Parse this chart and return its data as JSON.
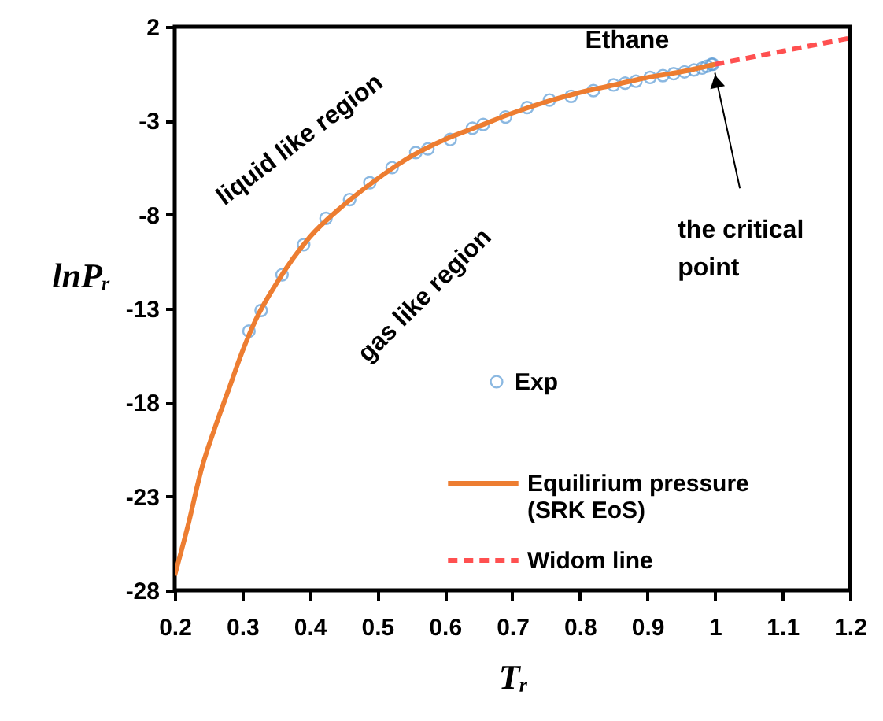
{
  "chart_data": {
    "type": "scatter",
    "xlabel": "Tᵣ",
    "ylabel": "lnPᵣ",
    "xlim": [
      0.2,
      1.2
    ],
    "xticks": [
      0.2,
      0.3,
      0.4,
      0.5,
      0.6,
      0.7,
      0.8,
      0.9,
      1,
      1.1,
      1.2
    ],
    "ylim": [
      -28,
      2
    ],
    "yticks": [
      2,
      -3,
      -8,
      -13,
      -18,
      -23,
      -28
    ],
    "grid": false,
    "legend": "bottom right",
    "annotations": [
      "Ethane",
      "liquid like region",
      "gas like region",
      {
        "text": "the critical point",
        "x": 1,
        "y": 0
      }
    ],
    "series": [
      {
        "name": "Exp",
        "marker": "circle",
        "color": "#5b9bd5",
        "x": [
          0.31,
          0.328,
          0.359,
          0.391,
          0.424,
          0.459,
          0.489,
          0.522,
          0.557,
          0.575,
          0.608,
          0.641,
          0.657,
          0.69,
          0.722,
          0.755,
          0.787,
          0.82,
          0.85,
          0.867,
          0.883,
          0.904,
          0.923,
          0.939,
          0.955,
          0.969,
          0.981,
          0.988,
          0.995,
          0.997
        ],
        "values": [
          -14.2,
          -13.1,
          -11.2,
          -9.6,
          -8.2,
          -7.2,
          -6.3,
          -5.5,
          -4.7,
          -4.5,
          -4.0,
          -3.4,
          -3.2,
          -2.8,
          -2.3,
          -1.9,
          -1.7,
          -1.4,
          -1.1,
          -1.0,
          -0.9,
          -0.7,
          -0.6,
          -0.5,
          -0.4,
          -0.3,
          -0.2,
          -0.1,
          0,
          0
        ]
      },
      {
        "name": "Equilirium pressure (SRK EoS)",
        "type": "line",
        "line_style": "solid",
        "color": "#ed7d31",
        "x": [
          0.2,
          0.22,
          0.24,
          0.26,
          0.28,
          0.3,
          0.32,
          0.35,
          0.4,
          0.45,
          0.5,
          0.55,
          0.6,
          0.65,
          0.7,
          0.75,
          0.8,
          0.85,
          0.9,
          0.95,
          1.0
        ],
        "values": [
          -27.2,
          -24.5,
          -21.5,
          -19.3,
          -17.3,
          -15.3,
          -13.6,
          -11.7,
          -9.2,
          -7.5,
          -6.1,
          -4.9,
          -4.0,
          -3.3,
          -2.6,
          -2.0,
          -1.5,
          -1.1,
          -0.7,
          -0.4,
          0
        ]
      },
      {
        "name": "Widom line",
        "type": "line",
        "line_style": "dashed",
        "color": "#ff5050",
        "x": [
          1.0,
          1.1,
          1.2
        ],
        "values": [
          0,
          0.7,
          1.4
        ]
      }
    ]
  }
}
